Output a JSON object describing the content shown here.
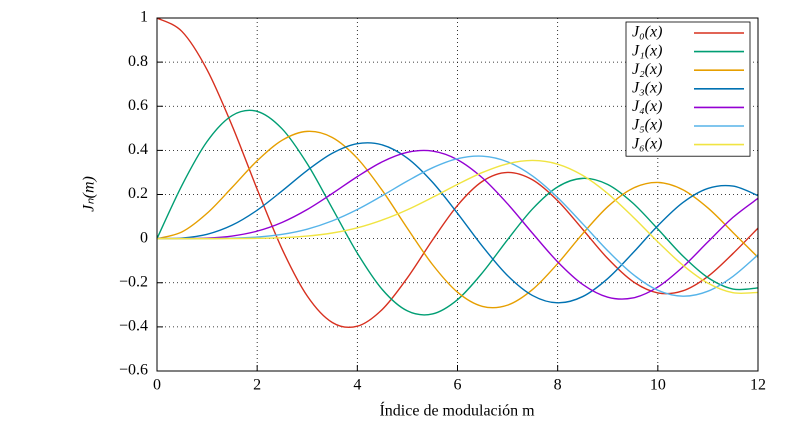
{
  "chart_data": {
    "type": "line",
    "xlabel": "Índice de modulación m",
    "ylabel": "Jₙ(m)",
    "x": [
      0,
      0.5,
      1,
      1.5,
      2,
      2.5,
      3,
      3.5,
      4,
      4.5,
      5,
      5.5,
      6,
      6.5,
      7,
      7.5,
      8,
      8.5,
      9,
      9.5,
      10,
      10.5,
      11,
      11.5,
      12
    ],
    "series": [
      {
        "name": "J₀(x)",
        "color": "#d7301f",
        "values": [
          1,
          0.9385,
          0.7652,
          0.5118,
          0.2239,
          -0.0484,
          -0.2601,
          -0.3801,
          -0.3971,
          -0.3205,
          -0.1776,
          -0.0068,
          0.1506,
          0.2601,
          0.3001,
          0.2663,
          0.1717,
          0.0419,
          -0.0903,
          -0.1939,
          -0.2459,
          -0.2366,
          -0.1712,
          -0.0677,
          0.0477
        ]
      },
      {
        "name": "J₁(x)",
        "color": "#009e73",
        "values": [
          0,
          0.2423,
          0.4401,
          0.5579,
          0.5767,
          0.4971,
          0.3391,
          0.1374,
          -0.066,
          -0.2311,
          -0.3276,
          -0.3414,
          -0.2767,
          -0.1538,
          -0.0047,
          0.1352,
          0.2346,
          0.2731,
          0.2453,
          0.1613,
          0.0435,
          -0.0789,
          -0.1768,
          -0.2284,
          -0.2234
        ]
      },
      {
        "name": "J₂(x)",
        "color": "#e69f00",
        "values": [
          0,
          0.0306,
          0.1149,
          0.2321,
          0.3528,
          0.4461,
          0.4861,
          0.4586,
          0.3641,
          0.2178,
          0.0466,
          -0.1173,
          -0.2429,
          -0.3074,
          -0.3014,
          -0.2303,
          -0.113,
          0.0223,
          0.1448,
          0.2279,
          0.2546,
          0.2215,
          0.139,
          0.028,
          -0.0849
        ]
      },
      {
        "name": "J₃(x)",
        "color": "#0072b2",
        "values": [
          0,
          0.0026,
          0.0196,
          0.061,
          0.1289,
          0.2167,
          0.3091,
          0.3868,
          0.4302,
          0.4247,
          0.3648,
          0.2561,
          0.1148,
          -0.0354,
          -0.1676,
          -0.2581,
          -0.2911,
          -0.2626,
          -0.1809,
          -0.0653,
          0.0584,
          0.1633,
          0.2274,
          0.2381,
          0.1951
        ]
      },
      {
        "name": "J₄(x)",
        "color": "#9400d3",
        "values": [
          0,
          0.0002,
          0.0025,
          0.0118,
          0.034,
          0.0738,
          0.132,
          0.2045,
          0.2811,
          0.3485,
          0.3912,
          0.3967,
          0.3576,
          0.2747,
          0.1577,
          0.0238,
          -0.1053,
          -0.2077,
          -0.2654,
          -0.2691,
          -0.2196,
          -0.1282,
          -0.015,
          0.0962,
          0.1825
        ]
      },
      {
        "name": "J₅(x)",
        "color": "#56b4e9",
        "values": [
          0,
          0,
          0.0002,
          0.0018,
          0.007,
          0.0195,
          0.043,
          0.0806,
          0.1321,
          0.1949,
          0.2611,
          0.3209,
          0.3621,
          0.3735,
          0.3479,
          0.2835,
          0.1858,
          0.0671,
          -0.055,
          -0.1613,
          -0.2341,
          -0.261,
          -0.2383,
          -0.1712,
          -0.0735
        ]
      },
      {
        "name": "J₆(x)",
        "color": "#f0e442",
        "values": [
          0,
          0,
          0,
          0.0002,
          0.0012,
          0.0042,
          0.0114,
          0.0255,
          0.0491,
          0.0846,
          0.131,
          0.1868,
          0.2458,
          0.2999,
          0.3392,
          0.3542,
          0.3376,
          0.2866,
          0.2043,
          0.0993,
          -0.0145,
          -0.1204,
          -0.2016,
          -0.2451,
          -0.2437
        ]
      }
    ],
    "xlim": [
      0,
      12
    ],
    "xticks": [
      0,
      2,
      4,
      6,
      8,
      10,
      12
    ],
    "ylim": [
      -0.6,
      1
    ],
    "yticks": [
      {
        "value": -0.6,
        "label": "−0.6"
      },
      {
        "value": -0.4,
        "label": "−0.4"
      },
      {
        "value": -0.2,
        "label": "−0.2"
      },
      0,
      0.2,
      0.4,
      0.6,
      0.8,
      1
    ],
    "grid": true,
    "legend": "top-right"
  }
}
